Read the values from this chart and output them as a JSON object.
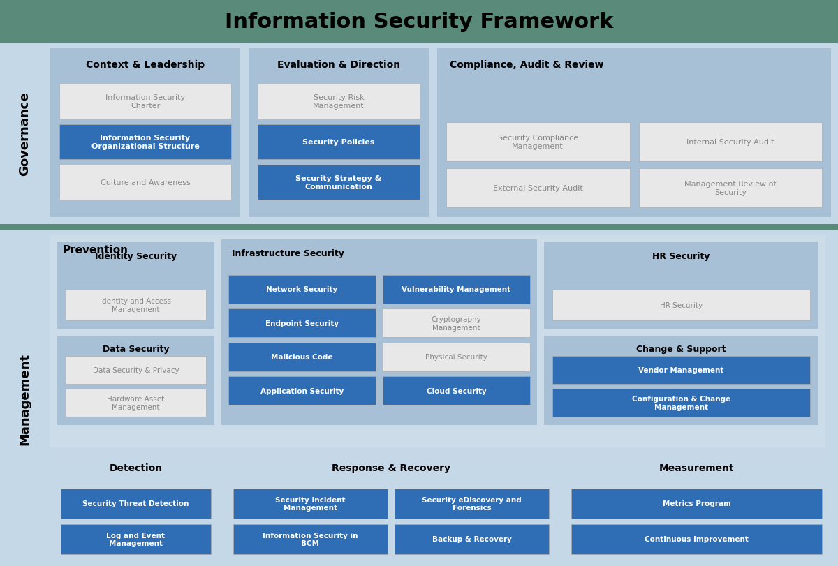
{
  "title": "Information Security Framework",
  "title_fontsize": 22,
  "bg_color": "#ffffff",
  "header_bg": "#5a8a7a",
  "governance_bg": "#c5d8e8",
  "management_bg": "#c5d8e8",
  "section_bg": "#a8c0d6",
  "prevention_bg": "#ccdce8",
  "in_scope_color": "#2f6eb5",
  "out_scope_color": "#e8e8e8",
  "in_scope_text": "#ffffff",
  "out_scope_text": "#888888",
  "separator_color": "#5a8a7a",
  "governance_label": "Governance",
  "management_label": "Management",
  "governance_sections": [
    {
      "title": "Context & Leadership",
      "items": [
        {
          "text": "Information Security\nCharter",
          "in_scope": false
        },
        {
          "text": "Information Security\nOrganizational Structure",
          "in_scope": true
        },
        {
          "text": "Culture and Awareness",
          "in_scope": false
        }
      ]
    },
    {
      "title": "Evaluation & Direction",
      "items": [
        {
          "text": "Security Risk\nManagement",
          "in_scope": false
        },
        {
          "text": "Security Policies",
          "in_scope": true
        },
        {
          "text": "Security Strategy &\nCommunication",
          "in_scope": true
        }
      ]
    },
    {
      "title": "Compliance, Audit & Review",
      "items_grid": [
        {
          "text": "Security Compliance\nManagement",
          "in_scope": false
        },
        {
          "text": "Internal Security Audit",
          "in_scope": false
        },
        {
          "text": "External Security Audit",
          "in_scope": false
        },
        {
          "text": "Management Review of\nSecurity",
          "in_scope": false
        }
      ]
    }
  ],
  "identity_security": {
    "title": "Identity Security",
    "items": [
      {
        "text": "Identity and Access\nManagement",
        "in_scope": false
      }
    ]
  },
  "data_security": {
    "title": "Data Security",
    "items": [
      {
        "text": "Hardware Asset\nManagement",
        "in_scope": false
      },
      {
        "text": "Data Security & Privacy",
        "in_scope": false
      }
    ]
  },
  "infrastructure_security": {
    "title": "Infrastructure Security",
    "items_left": [
      {
        "text": "Network Security",
        "in_scope": true
      },
      {
        "text": "Endpoint Security",
        "in_scope": true
      },
      {
        "text": "Malicious Code",
        "in_scope": true
      },
      {
        "text": "Application Security",
        "in_scope": true
      }
    ],
    "items_right": [
      {
        "text": "Vulnerability Management",
        "in_scope": true
      },
      {
        "text": "Cryptography\nManagement",
        "in_scope": false
      },
      {
        "text": "Physical Security",
        "in_scope": false
      },
      {
        "text": "Cloud Security",
        "in_scope": true
      }
    ]
  },
  "hr_security": {
    "title": "HR Security",
    "items": [
      {
        "text": "HR Security",
        "in_scope": false
      }
    ]
  },
  "change_support": {
    "title": "Change & Support",
    "items": [
      {
        "text": "Configuration & Change\nManagement",
        "in_scope": true
      },
      {
        "text": "Vendor Management",
        "in_scope": true
      }
    ]
  },
  "management_bottom": [
    {
      "title": "Detection",
      "items": [
        {
          "text": "Security Threat Detection",
          "in_scope": true
        },
        {
          "text": "Log and Event\nManagement",
          "in_scope": true
        }
      ]
    },
    {
      "title": "Response & Recovery",
      "items_left": [
        {
          "text": "Security Incident\nManagement",
          "in_scope": true
        },
        {
          "text": "Information Security in\nBCM",
          "in_scope": true
        }
      ],
      "items_right": [
        {
          "text": "Security eDiscovery and\nForensics",
          "in_scope": true
        },
        {
          "text": "Backup & Recovery",
          "in_scope": true
        }
      ]
    },
    {
      "title": "Measurement",
      "items": [
        {
          "text": "Metrics Program",
          "in_scope": true
        },
        {
          "text": "Continuous Improvement",
          "in_scope": true
        }
      ]
    }
  ]
}
